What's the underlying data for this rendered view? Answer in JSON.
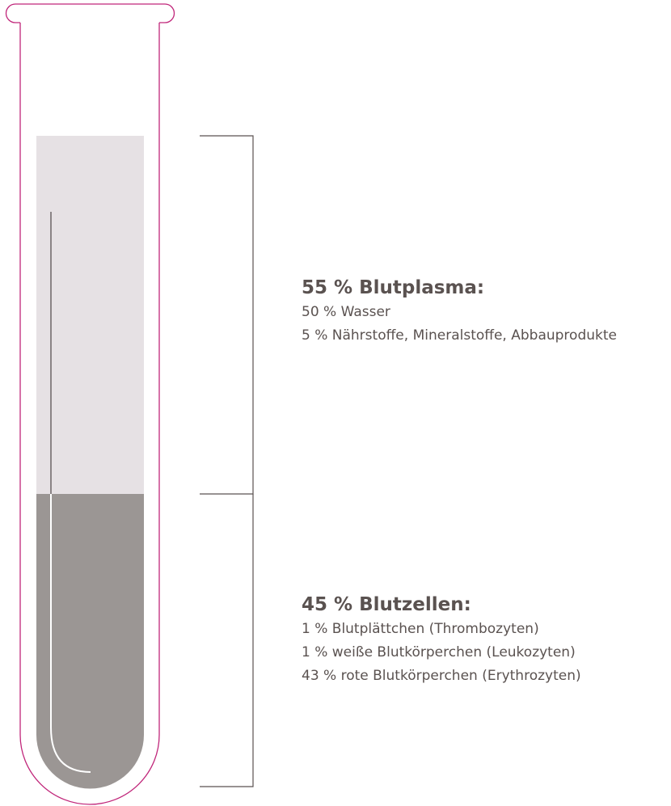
{
  "sections": [
    {
      "title": "55 % Blutplasma:",
      "lines": [
        "50 % Wasser",
        "5 % Nährstoffe, Mineralstoffe, Abbauprodukte"
      ]
    },
    {
      "title": "45 % Blutzellen:",
      "lines": [
        "1 % Blutplättchen (Thrombozyten)",
        "1 % weiße Blutkörperchen (Leukozyten)",
        "43 % rote Blutkörperchen (Erythrozyten)"
      ]
    }
  ]
}
